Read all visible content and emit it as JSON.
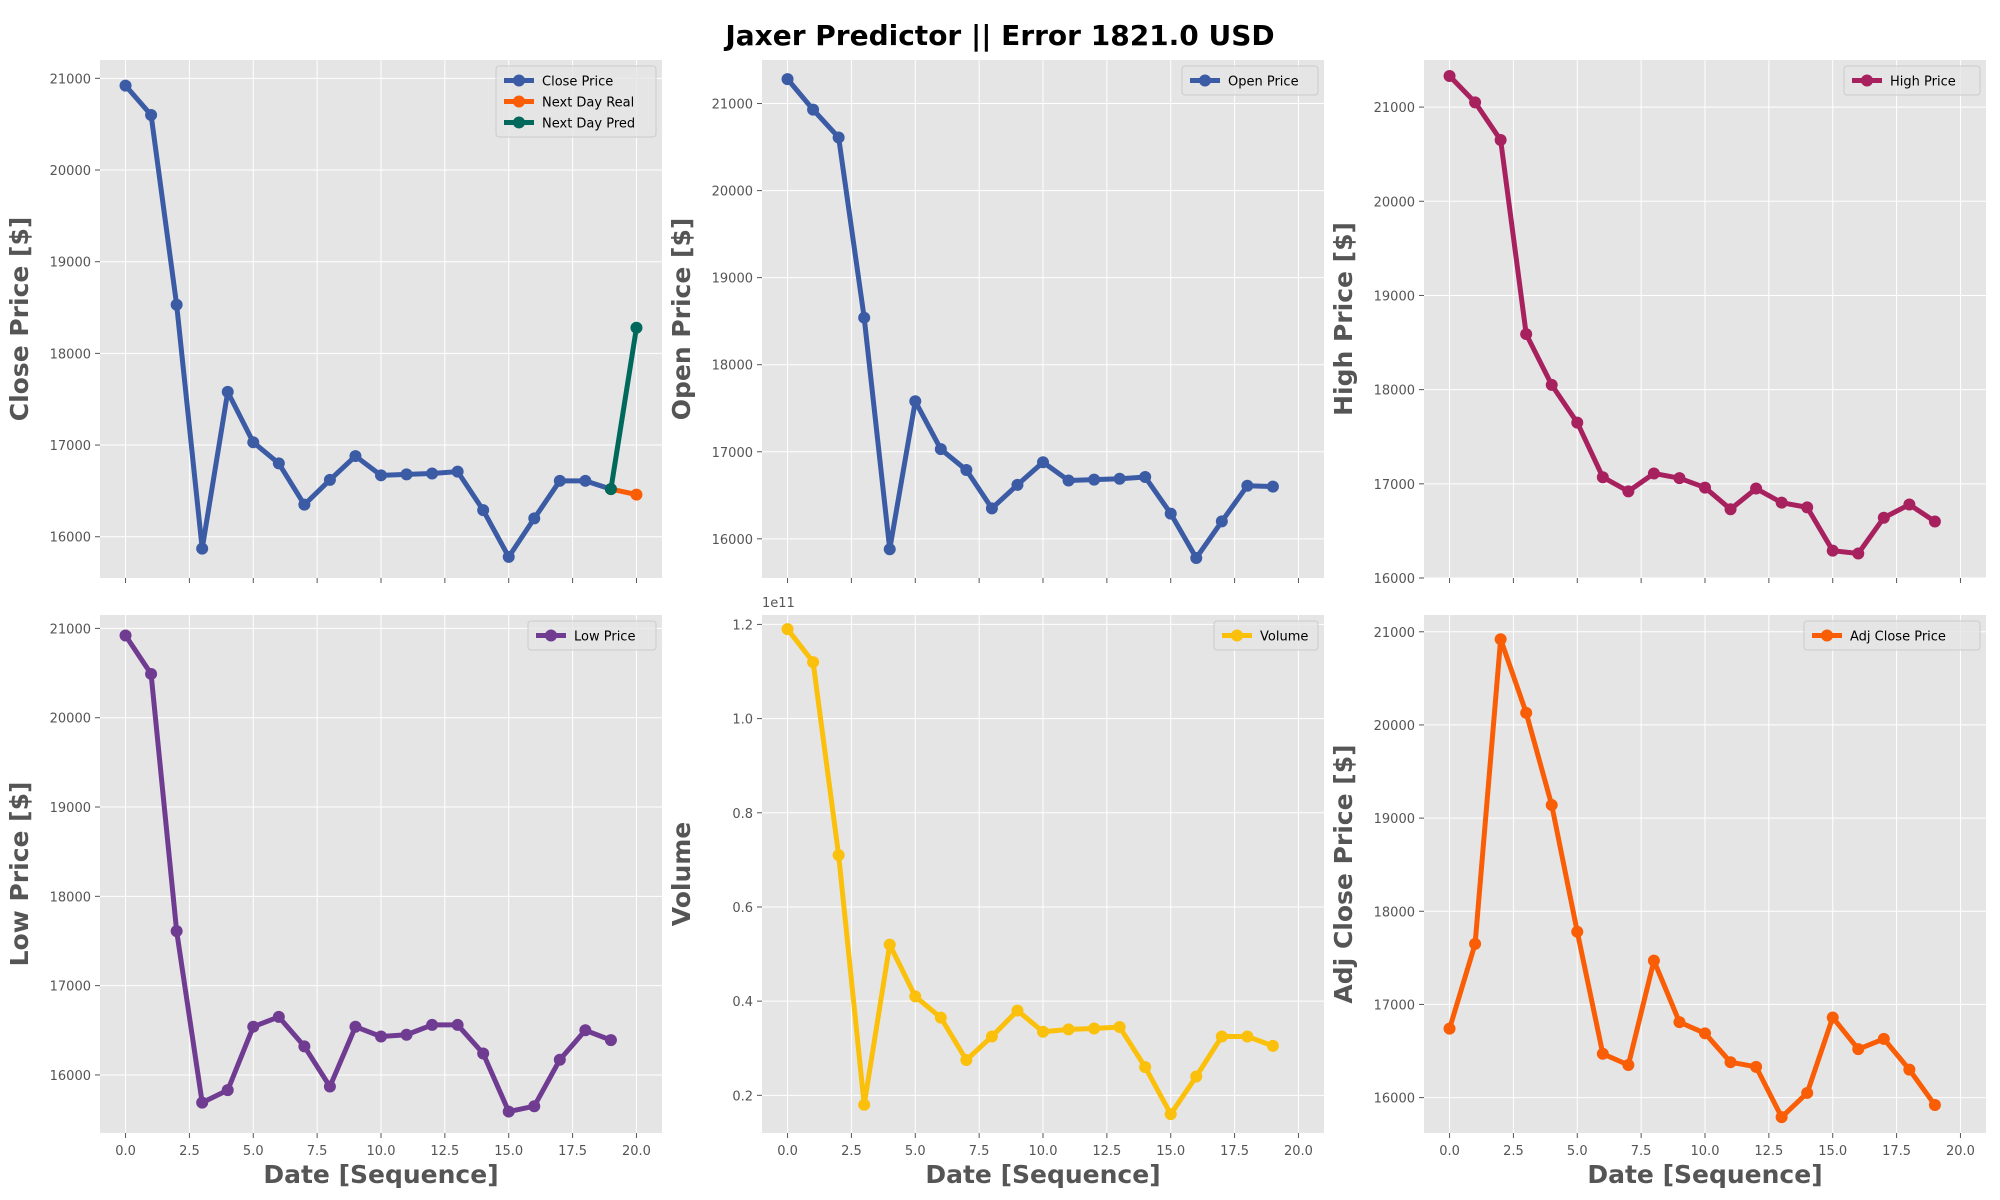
{
  "figure": {
    "title": "Jaxer Predictor || Error 1821.0 USD",
    "background": "#ffffff",
    "axes_facecolor": "#e5e5e5",
    "grid_color": "#ffffff",
    "text_color": "#555555"
  },
  "chart_data": [
    {
      "type": "line",
      "ylabel": "Close Price [$]",
      "xlabel": "",
      "xlim": [
        -1,
        21
      ],
      "ylim": [
        15550,
        21200
      ],
      "xticks": [
        0,
        2.5,
        5,
        7.5,
        10,
        12.5,
        15,
        17.5,
        20
      ],
      "xtick_labels": [],
      "yticks": [
        16000,
        17000,
        18000,
        19000,
        20000,
        21000
      ],
      "ytick_labels": [
        "16000",
        "17000",
        "18000",
        "19000",
        "20000",
        "21000"
      ],
      "grid": true,
      "legend": "top-right",
      "series": [
        {
          "name": "Close Price",
          "color": "#3b5ba5",
          "x": [
            0,
            1,
            2,
            3,
            4,
            5,
            6,
            7,
            8,
            9,
            10,
            11,
            12,
            13,
            14,
            15,
            16,
            17,
            18,
            19
          ],
          "values": [
            20920,
            20600,
            18530,
            15870,
            17580,
            17030,
            16800,
            16350,
            16620,
            16880,
            16670,
            16680,
            16690,
            16710,
            16290,
            15780,
            16200,
            16610,
            16610,
            16520
          ]
        },
        {
          "name": "Next Day Real",
          "color": "#f95d06",
          "x": [
            19,
            20
          ],
          "values": [
            16520,
            16460
          ]
        },
        {
          "name": "Next Day Pred",
          "color": "#00695c",
          "x": [
            19,
            20
          ],
          "values": [
            16520,
            18280
          ]
        }
      ]
    },
    {
      "type": "line",
      "ylabel": "Open Price [$]",
      "xlabel": "",
      "xlim": [
        -1,
        21
      ],
      "ylim": [
        15550,
        21500
      ],
      "xticks": [
        0,
        2.5,
        5,
        7.5,
        10,
        12.5,
        15,
        17.5,
        20
      ],
      "xtick_labels": [],
      "yticks": [
        16000,
        17000,
        18000,
        19000,
        20000,
        21000
      ],
      "ytick_labels": [
        "16000",
        "17000",
        "18000",
        "19000",
        "20000",
        "21000"
      ],
      "grid": true,
      "legend": "top-right",
      "series": [
        {
          "name": "Open Price",
          "color": "#3b5ba5",
          "x": [
            0,
            1,
            2,
            3,
            4,
            5,
            6,
            7,
            8,
            9,
            10,
            11,
            12,
            13,
            14,
            15,
            16,
            17,
            18,
            19
          ],
          "values": [
            21280,
            20930,
            20610,
            18540,
            15880,
            17580,
            17030,
            16790,
            16350,
            16620,
            16880,
            16670,
            16680,
            16690,
            16710,
            16290,
            15780,
            16200,
            16610,
            16600
          ]
        }
      ]
    },
    {
      "type": "line",
      "ylabel": "High Price [$]",
      "xlabel": "",
      "xlim": [
        -1,
        21
      ],
      "ylim": [
        16000,
        21500
      ],
      "xticks": [
        0,
        2.5,
        5,
        7.5,
        10,
        12.5,
        15,
        17.5,
        20
      ],
      "xtick_labels": [],
      "yticks": [
        16000,
        17000,
        18000,
        19000,
        20000,
        21000
      ],
      "ytick_labels": [
        "16000",
        "17000",
        "18000",
        "19000",
        "20000",
        "21000"
      ],
      "grid": true,
      "legend": "top-right",
      "series": [
        {
          "name": "High Price",
          "color": "#a8215f",
          "x": [
            0,
            1,
            2,
            3,
            4,
            5,
            6,
            7,
            8,
            9,
            10,
            11,
            12,
            13,
            14,
            15,
            16,
            17,
            18,
            19
          ],
          "values": [
            21330,
            21050,
            20650,
            18590,
            18050,
            17650,
            17070,
            16920,
            17110,
            17060,
            16960,
            16730,
            16950,
            16800,
            16750,
            16290,
            16260,
            16640,
            16780,
            16600
          ]
        }
      ]
    },
    {
      "type": "line",
      "ylabel": "Low Price [$]",
      "xlabel": "Date [Sequence]",
      "xlim": [
        -1,
        21
      ],
      "ylim": [
        15350,
        21150
      ],
      "xticks": [
        0,
        2.5,
        5,
        7.5,
        10,
        12.5,
        15,
        17.5,
        20
      ],
      "xtick_labels": [
        "0.0",
        "2.5",
        "5.0",
        "7.5",
        "10.0",
        "12.5",
        "15.0",
        "17.5",
        "20.0"
      ],
      "yticks": [
        16000,
        17000,
        18000,
        19000,
        20000,
        21000
      ],
      "ytick_labels": [
        "16000",
        "17000",
        "18000",
        "19000",
        "20000",
        "21000"
      ],
      "grid": true,
      "legend": "top-right",
      "series": [
        {
          "name": "Low Price",
          "color": "#6f3c92",
          "x": [
            0,
            1,
            2,
            3,
            4,
            5,
            6,
            7,
            8,
            9,
            10,
            11,
            12,
            13,
            14,
            15,
            16,
            17,
            18,
            19
          ],
          "values": [
            20920,
            20490,
            17610,
            15690,
            15830,
            16540,
            16650,
            16320,
            15870,
            16540,
            16430,
            16450,
            16560,
            16560,
            16240,
            15590,
            15650,
            16170,
            16500,
            16390
          ]
        }
      ]
    },
    {
      "type": "line",
      "ylabel": "Volume",
      "xlabel": "Date [Sequence]",
      "offset_label": "1e11",
      "xlim": [
        -1,
        21
      ],
      "ylim": [
        0.12,
        1.22
      ],
      "xticks": [
        0,
        2.5,
        5,
        7.5,
        10,
        12.5,
        15,
        17.5,
        20
      ],
      "xtick_labels": [
        "0.0",
        "2.5",
        "5.0",
        "7.5",
        "10.0",
        "12.5",
        "15.0",
        "17.5",
        "20.0"
      ],
      "yticks": [
        0.2,
        0.4,
        0.6,
        0.8,
        1.0,
        1.2
      ],
      "ytick_labels": [
        "0.2",
        "0.4",
        "0.6",
        "0.8",
        "1.0",
        "1.2"
      ],
      "grid": true,
      "legend": "top-right",
      "series": [
        {
          "name": "Volume",
          "color": "#fbc00b",
          "x": [
            0,
            1,
            2,
            3,
            4,
            5,
            6,
            7,
            8,
            9,
            10,
            11,
            12,
            13,
            14,
            15,
            16,
            17,
            18,
            19
          ],
          "values": [
            1.19,
            1.12,
            0.71,
            0.18,
            0.52,
            0.41,
            0.365,
            0.275,
            0.325,
            0.38,
            0.335,
            0.34,
            0.342,
            0.345,
            0.26,
            0.16,
            0.24,
            0.325,
            0.325,
            0.305
          ]
        }
      ]
    },
    {
      "type": "line",
      "ylabel": "Adj Close Price [$]",
      "xlabel": "Date [Sequence]",
      "xlim": [
        -1,
        21
      ],
      "ylim": [
        15620,
        21180
      ],
      "xticks": [
        0,
        2.5,
        5,
        7.5,
        10,
        12.5,
        15,
        17.5,
        20
      ],
      "xtick_labels": [
        "0.0",
        "2.5",
        "5.0",
        "7.5",
        "10.0",
        "12.5",
        "15.0",
        "17.5",
        "20.0"
      ],
      "yticks": [
        16000,
        17000,
        18000,
        19000,
        20000,
        21000
      ],
      "ytick_labels": [
        "16000",
        "17000",
        "18000",
        "19000",
        "20000",
        "21000"
      ],
      "grid": true,
      "legend": "top-right",
      "series": [
        {
          "name": "Adj Close Price",
          "color": "#f95d06",
          "x": [
            0,
            1,
            2,
            3,
            4,
            5,
            6,
            7,
            8,
            9,
            10,
            11,
            12,
            13,
            14,
            15,
            16,
            17,
            18,
            19
          ],
          "values": [
            16740,
            17650,
            20920,
            20130,
            19140,
            17780,
            16470,
            16350,
            17470,
            16810,
            16690,
            16380,
            16330,
            15790,
            16050,
            16860,
            16520,
            16630,
            16300,
            15920
          ]
        }
      ]
    }
  ]
}
